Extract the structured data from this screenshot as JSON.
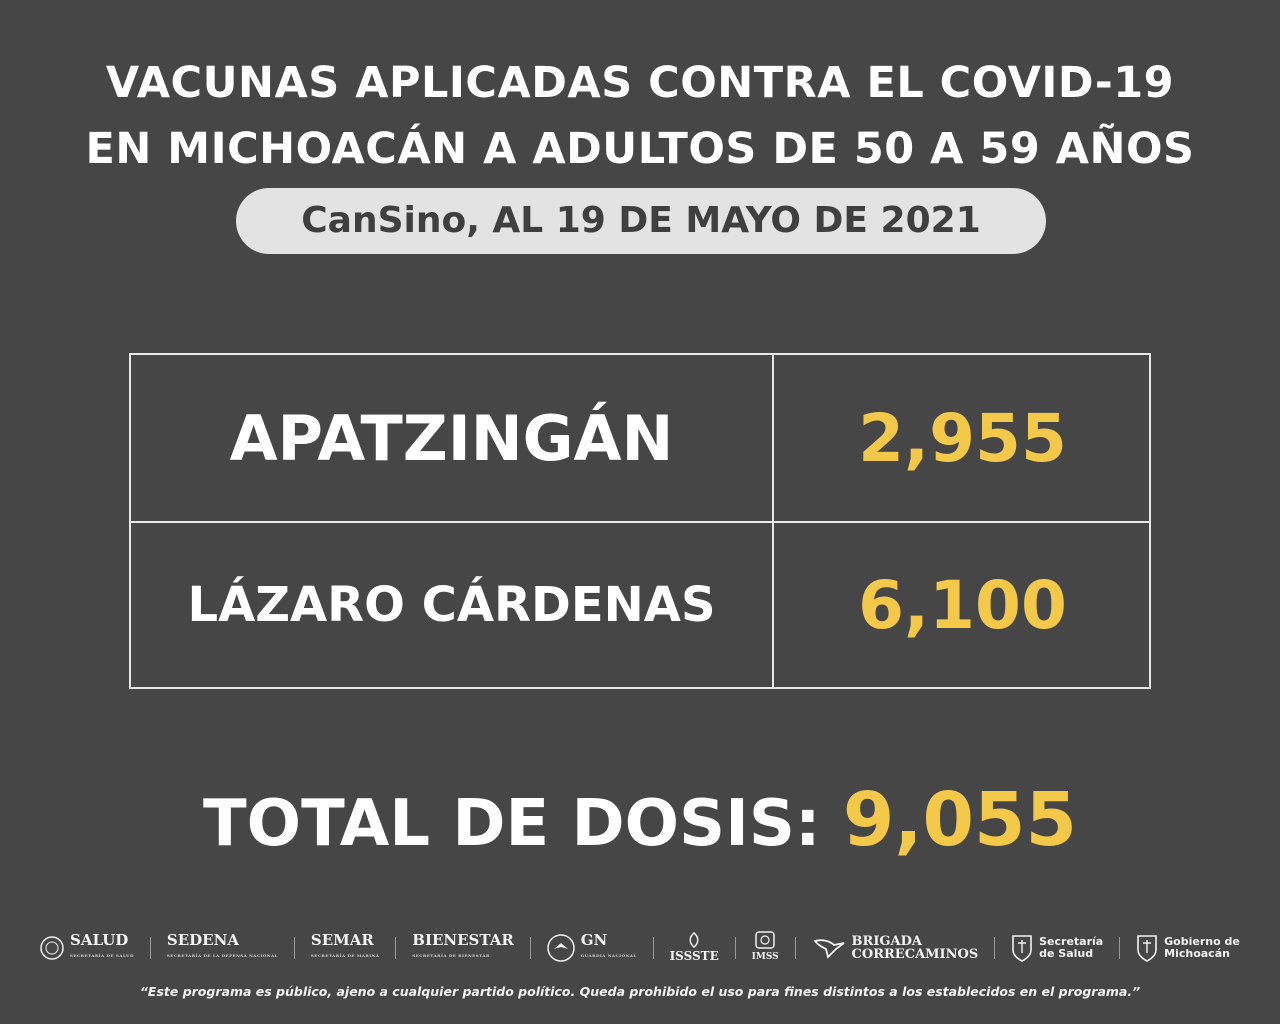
{
  "header": {
    "title_line1": "VACUNAS APLICADAS CONTRA EL COVID-19",
    "title_line2": "EN MICHOACÁN A ADULTOS DE 50 A 59 AÑOS",
    "subtitle": "CanSino, AL 19 DE MAYO DE 2021"
  },
  "table": {
    "rows": [
      {
        "municipality": "APATZINGÁN",
        "doses": "2,955"
      },
      {
        "municipality": "LÁZARO CÁRDENAS",
        "doses": "6,100"
      }
    ]
  },
  "total": {
    "label": "TOTAL DE DOSIS:",
    "value": "9,055"
  },
  "logos": {
    "salud": {
      "name": "SALUD",
      "sub": "SECRETARÍA DE SALUD",
      "icon": "mexico-seal-icon"
    },
    "sedena": {
      "name": "SEDENA",
      "sub": "SECRETARÍA DE LA DEFENSA NACIONAL"
    },
    "semar": {
      "name": "SEMAR",
      "sub": "SECRETARÍA DE MARINA"
    },
    "bienestar": {
      "name": "BIENESTAR",
      "sub": "SECRETARÍA DE BIENESTAR"
    },
    "gn": {
      "name": "GN",
      "sub": "GUARDIA NACIONAL",
      "icon": "guardia-nacional-emblem-icon"
    },
    "issste": {
      "name": "ISSSTE",
      "icon": "issste-emblem-icon"
    },
    "imss": {
      "name": "IMSS",
      "icon": "imss-emblem-icon"
    },
    "brigada": {
      "line1": "BRIGADA",
      "line2": "CORRECAMINOS",
      "icon": "roadrunner-icon"
    },
    "secretaria_salud": {
      "line1": "Secretaría",
      "line2": "de Salud",
      "icon": "michoacan-shield-icon"
    },
    "gobierno": {
      "line1": "Gobierno de",
      "line2": "Michoacán",
      "icon": "michoacan-shield-icon"
    }
  },
  "footer": {
    "disclaimer": "“Este programa es público, ajeno a cualquier partido político. Queda prohibido el uso para fines distintos a los establecidos en el programa.”"
  },
  "colors": {
    "background": "#464646",
    "accent": "#f4c94a",
    "pill": "#e3e3e3"
  }
}
